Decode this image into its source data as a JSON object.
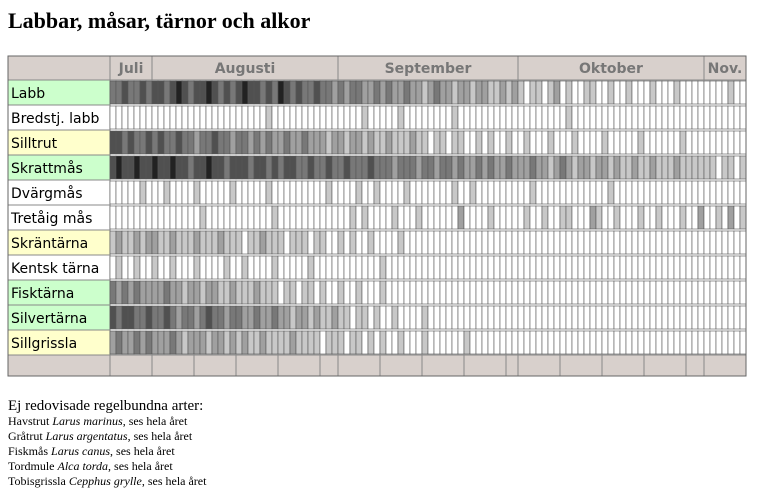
{
  "title": "Labbar, måsar, tärnor och alkor",
  "months": [
    {
      "label": "Juli",
      "days": 7
    },
    {
      "label": "Augusti",
      "days": 31
    },
    {
      "label": "September",
      "days": 30
    },
    {
      "label": "Oktober",
      "days": 31
    },
    {
      "label": "Nov.",
      "days": 7
    }
  ],
  "rows": [
    {
      "name": "Labb",
      "color": "#ccffcc",
      "levels": [
        3,
        3,
        4,
        3,
        3,
        4,
        3,
        4,
        4,
        3,
        4,
        5,
        4,
        3,
        4,
        4,
        5,
        4,
        3,
        4,
        3,
        4,
        5,
        4,
        4,
        3,
        4,
        3,
        5,
        4,
        3,
        4,
        3,
        3,
        4,
        3,
        3,
        2,
        3,
        2,
        3,
        3,
        2,
        2,
        3,
        2,
        3,
        2,
        2,
        3,
        2,
        2,
        1,
        2,
        3,
        2,
        2,
        1,
        2,
        2,
        1,
        2,
        2,
        1,
        1,
        2,
        1,
        2,
        1,
        0,
        1,
        1,
        0,
        1,
        2,
        0,
        1,
        0,
        0,
        1,
        1,
        0,
        0,
        1,
        0,
        0,
        1,
        0,
        0,
        0,
        1,
        0,
        0,
        0,
        1,
        0,
        0,
        0,
        0,
        0,
        0,
        0,
        0,
        1,
        0,
        0
      ]
    },
    {
      "name": "Bredstj. labb",
      "color": "#ffffff",
      "levels": [
        0,
        0,
        0,
        0,
        0,
        0,
        0,
        0,
        0,
        0,
        0,
        0,
        0,
        0,
        0,
        0,
        0,
        0,
        0,
        0,
        0,
        0,
        0,
        0,
        0,
        0,
        1,
        0,
        0,
        0,
        0,
        0,
        0,
        0,
        0,
        0,
        0,
        0,
        0,
        0,
        0,
        0,
        1,
        0,
        0,
        0,
        0,
        0,
        1,
        0,
        0,
        0,
        0,
        0,
        0,
        0,
        0,
        1,
        0,
        0,
        0,
        0,
        0,
        0,
        0,
        0,
        0,
        0,
        0,
        0,
        0,
        0,
        0,
        0,
        0,
        0,
        1,
        0,
        0,
        0,
        0,
        0,
        0,
        0,
        0,
        0,
        0,
        0,
        0,
        0,
        0,
        0,
        0,
        0,
        0,
        0,
        0,
        0,
        0,
        0,
        0,
        0,
        0,
        0,
        0,
        0
      ]
    },
    {
      "name": "Silltrut",
      "color": "#ffffcc",
      "levels": [
        4,
        4,
        3,
        4,
        3,
        3,
        4,
        3,
        4,
        3,
        3,
        4,
        3,
        3,
        2,
        3,
        3,
        4,
        3,
        3,
        2,
        3,
        3,
        2,
        3,
        2,
        3,
        2,
        2,
        3,
        2,
        2,
        3,
        2,
        2,
        2,
        1,
        2,
        2,
        1,
        2,
        2,
        1,
        2,
        1,
        1,
        2,
        1,
        1,
        1,
        2,
        1,
        1,
        0,
        1,
        1,
        0,
        1,
        1,
        0,
        0,
        1,
        0,
        1,
        0,
        0,
        1,
        0,
        0,
        1,
        0,
        0,
        0,
        1,
        0,
        0,
        0,
        1,
        0,
        0,
        0,
        0,
        1,
        0,
        0,
        0,
        0,
        0,
        1,
        0,
        0,
        0,
        0,
        0,
        0,
        1,
        0,
        0,
        0,
        0,
        0,
        0,
        0,
        0,
        0,
        0
      ]
    },
    {
      "name": "Skrattmås",
      "color": "#ccffcc",
      "levels": [
        4,
        5,
        4,
        4,
        5,
        4,
        4,
        5,
        4,
        4,
        5,
        4,
        4,
        3,
        4,
        4,
        5,
        4,
        4,
        3,
        4,
        4,
        4,
        3,
        4,
        4,
        3,
        4,
        3,
        4,
        4,
        3,
        3,
        4,
        3,
        3,
        4,
        3,
        3,
        4,
        3,
        3,
        3,
        4,
        3,
        3,
        3,
        2,
        3,
        3,
        3,
        2,
        3,
        3,
        2,
        3,
        3,
        2,
        3,
        2,
        2,
        3,
        2,
        3,
        2,
        2,
        3,
        2,
        2,
        2,
        3,
        2,
        2,
        1,
        2,
        3,
        2,
        1,
        2,
        2,
        1,
        2,
        2,
        1,
        2,
        1,
        1,
        2,
        1,
        1,
        2,
        1,
        1,
        1,
        2,
        1,
        1,
        1,
        1,
        1,
        1,
        0,
        1,
        1,
        0,
        1
      ]
    },
    {
      "name": "Dvärgmås",
      "color": "#ffffff",
      "levels": [
        0,
        0,
        0,
        0,
        0,
        1,
        0,
        0,
        0,
        1,
        0,
        0,
        0,
        0,
        1,
        0,
        0,
        0,
        0,
        0,
        1,
        0,
        0,
        0,
        0,
        0,
        1,
        0,
        0,
        0,
        0,
        0,
        0,
        0,
        0,
        0,
        1,
        0,
        0,
        0,
        0,
        1,
        0,
        0,
        1,
        0,
        0,
        0,
        0,
        1,
        0,
        0,
        0,
        0,
        0,
        0,
        0,
        1,
        0,
        0,
        1,
        0,
        0,
        0,
        0,
        0,
        0,
        0,
        0,
        0,
        1,
        0,
        0,
        0,
        0,
        0,
        0,
        0,
        0,
        0,
        0,
        0,
        0,
        1,
        0,
        0,
        0,
        0,
        0,
        0,
        0,
        0,
        0,
        0,
        0,
        0,
        0,
        0,
        0,
        0,
        0,
        0,
        0,
        0,
        0,
        0
      ]
    },
    {
      "name": "Tretåig mås",
      "color": "#ffffff",
      "levels": [
        0,
        0,
        0,
        0,
        0,
        0,
        0,
        0,
        0,
        0,
        0,
        0,
        0,
        0,
        0,
        1,
        0,
        0,
        0,
        0,
        0,
        0,
        0,
        0,
        0,
        0,
        0,
        1,
        0,
        0,
        0,
        0,
        0,
        0,
        0,
        0,
        0,
        0,
        0,
        0,
        1,
        0,
        1,
        0,
        0,
        0,
        0,
        1,
        0,
        0,
        0,
        1,
        0,
        0,
        0,
        0,
        0,
        0,
        2,
        0,
        0,
        0,
        0,
        1,
        0,
        0,
        0,
        0,
        0,
        1,
        0,
        0,
        1,
        0,
        0,
        1,
        1,
        0,
        0,
        0,
        2,
        1,
        0,
        0,
        1,
        0,
        0,
        0,
        1,
        0,
        0,
        1,
        0,
        0,
        0,
        1,
        0,
        0,
        2,
        0,
        0,
        1,
        0,
        2,
        0,
        1
      ]
    },
    {
      "name": "Skräntärna",
      "color": "#ffffcc",
      "levels": [
        1,
        2,
        1,
        1,
        2,
        1,
        2,
        2,
        1,
        1,
        2,
        1,
        1,
        1,
        2,
        1,
        1,
        1,
        2,
        1,
        1,
        1,
        0,
        1,
        1,
        2,
        1,
        1,
        1,
        0,
        1,
        1,
        1,
        0,
        1,
        1,
        0,
        0,
        1,
        0,
        1,
        0,
        0,
        1,
        0,
        0,
        0,
        0,
        1,
        0,
        0,
        0,
        0,
        0,
        0,
        0,
        0,
        0,
        0,
        0,
        0,
        0,
        0,
        0,
        0,
        0,
        0,
        0,
        0,
        0,
        0,
        0,
        0,
        0,
        0,
        0,
        0,
        0,
        0,
        0,
        0,
        0,
        0,
        0,
        0,
        0,
        0,
        0,
        0,
        0,
        0,
        0,
        0,
        0,
        0,
        0,
        0,
        0,
        0,
        0,
        0,
        0,
        0,
        0,
        0,
        0
      ]
    },
    {
      "name": "Kentsk tärna",
      "color": "#ffffff",
      "levels": [
        0,
        1,
        0,
        0,
        1,
        0,
        0,
        1,
        0,
        0,
        1,
        0,
        0,
        0,
        1,
        0,
        0,
        0,
        0,
        1,
        0,
        0,
        1,
        0,
        0,
        0,
        0,
        1,
        0,
        0,
        0,
        0,
        0,
        1,
        0,
        0,
        0,
        0,
        0,
        0,
        0,
        0,
        0,
        0,
        0,
        1,
        0,
        0,
        0,
        0,
        0,
        0,
        0,
        0,
        0,
        0,
        0,
        0,
        0,
        0,
        0,
        0,
        0,
        0,
        0,
        0,
        0,
        0,
        0,
        0,
        0,
        0,
        0,
        0,
        0,
        0,
        0,
        0,
        0,
        0,
        0,
        0,
        0,
        0,
        0,
        0,
        0,
        0,
        0,
        0,
        0,
        0,
        0,
        0,
        0,
        0,
        0,
        0,
        0,
        0,
        0,
        0,
        0,
        0,
        0,
        0
      ]
    },
    {
      "name": "Fisktärna",
      "color": "#ccffcc",
      "levels": [
        3,
        2,
        3,
        2,
        3,
        2,
        2,
        2,
        2,
        3,
        2,
        2,
        1,
        2,
        2,
        1,
        2,
        2,
        1,
        1,
        2,
        1,
        1,
        1,
        2,
        1,
        1,
        1,
        0,
        1,
        1,
        0,
        1,
        1,
        0,
        1,
        0,
        0,
        1,
        0,
        0,
        1,
        0,
        0,
        0,
        1,
        0,
        0,
        0,
        0,
        0,
        0,
        0,
        0,
        0,
        0,
        0,
        0,
        0,
        0,
        0,
        0,
        0,
        0,
        0,
        0,
        0,
        0,
        0,
        0,
        0,
        0,
        0,
        0,
        0,
        0,
        0,
        0,
        0,
        0,
        0,
        0,
        0,
        0,
        0,
        0,
        0,
        0,
        0,
        0,
        0,
        0,
        0,
        0,
        0,
        0,
        0,
        0,
        0,
        0,
        0,
        0,
        0,
        0,
        0,
        0
      ]
    },
    {
      "name": "Silvertärna",
      "color": "#ccffcc",
      "levels": [
        4,
        3,
        4,
        4,
        3,
        3,
        4,
        3,
        3,
        4,
        3,
        2,
        3,
        3,
        2,
        3,
        4,
        3,
        3,
        2,
        3,
        3,
        2,
        2,
        3,
        2,
        2,
        3,
        2,
        2,
        1,
        2,
        2,
        1,
        2,
        1,
        1,
        2,
        1,
        1,
        0,
        1,
        1,
        0,
        1,
        0,
        0,
        1,
        0,
        0,
        0,
        0,
        1,
        0,
        0,
        0,
        0,
        0,
        0,
        0,
        0,
        0,
        0,
        0,
        0,
        0,
        0,
        0,
        0,
        0,
        0,
        0,
        0,
        0,
        0,
        0,
        0,
        0,
        0,
        0,
        0,
        0,
        0,
        0,
        0,
        0,
        0,
        0,
        0,
        0,
        0,
        0,
        0,
        0,
        0,
        0,
        0,
        0,
        0,
        0,
        0,
        0,
        0,
        0,
        0,
        0
      ]
    },
    {
      "name": "Sillgrissla",
      "color": "#ffffcc",
      "levels": [
        2,
        3,
        2,
        2,
        3,
        2,
        3,
        2,
        2,
        2,
        3,
        2,
        1,
        2,
        2,
        2,
        1,
        2,
        2,
        1,
        2,
        1,
        2,
        1,
        1,
        2,
        1,
        1,
        1,
        1,
        2,
        1,
        1,
        1,
        1,
        0,
        1,
        1,
        1,
        0,
        1,
        1,
        0,
        1,
        0,
        1,
        0,
        0,
        1,
        0,
        0,
        0,
        1,
        0,
        0,
        0,
        0,
        0,
        0,
        1,
        0,
        0,
        0,
        0,
        0,
        0,
        0,
        0,
        0,
        0,
        0,
        0,
        0,
        0,
        0,
        0,
        0,
        0,
        0,
        0,
        0,
        0,
        0,
        0,
        0,
        0,
        0,
        0,
        0,
        0,
        0,
        0,
        0,
        0,
        0,
        0,
        0,
        0,
        0,
        0,
        0,
        0,
        0,
        0,
        0,
        0
      ]
    }
  ],
  "notes": {
    "heading": "Ej redovisade regelbundna arter:",
    "items": [
      {
        "name": "Havstrut",
        "latin": "Larus marinus",
        "text": ", ses hela året"
      },
      {
        "name": "Gråtrut",
        "latin": "Larus argentatus",
        "text": ", ses hela året"
      },
      {
        "name": "Fiskmås",
        "latin": "Larus canus",
        "text": ", ses hela året"
      },
      {
        "name": "Tordmule",
        "latin": "Alca torda",
        "text": ", ses hela året"
      },
      {
        "name": "Tobisgrissla",
        "latin": "Cepphus grylle",
        "text": ", ses hela året"
      }
    ]
  }
}
